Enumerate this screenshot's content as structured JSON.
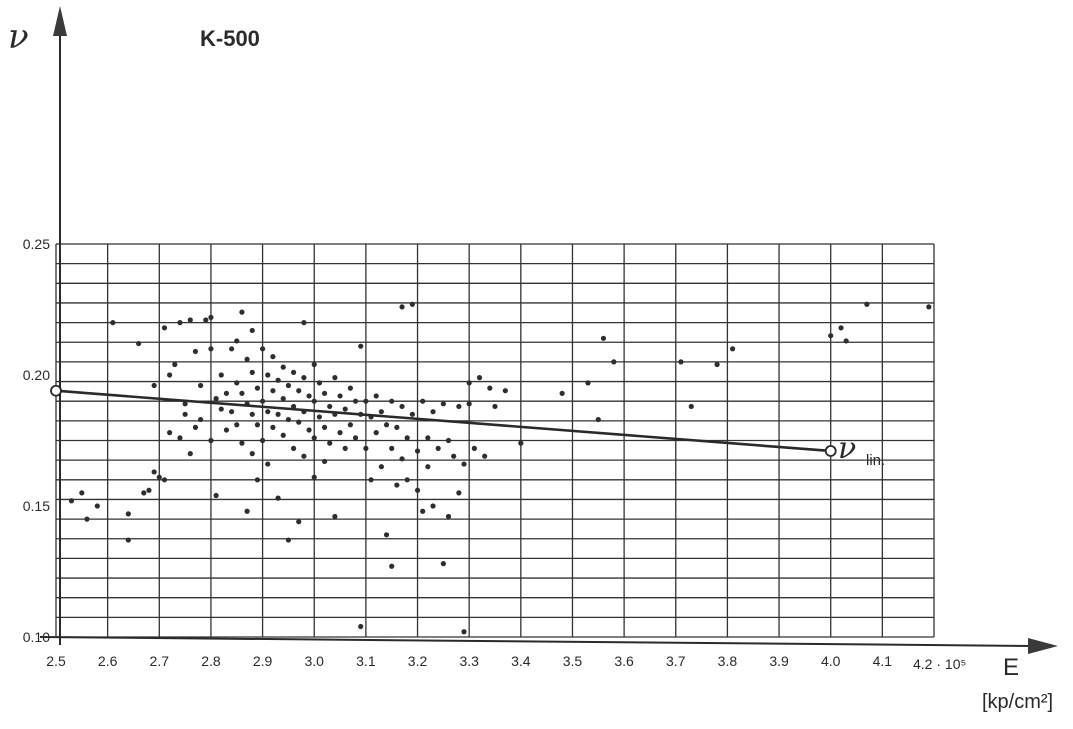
{
  "chart_data": {
    "type": "scatter",
    "title": "K-500",
    "ylabel": "ν",
    "xlabel": "E",
    "xunit": "[kp/cm²]",
    "x_multiplier_label": "4.2 · 10⁵",
    "xlim": [
      2.5,
      4.2
    ],
    "ylim": [
      0.1,
      0.25
    ],
    "x_ticks": [
      "2.5",
      "2.6",
      "2.7",
      "2.8",
      "2.9",
      "3.0",
      "3.1",
      "3.2",
      "3.3",
      "3.4",
      "3.5",
      "3.6",
      "3.7",
      "3.8",
      "3.9",
      "4.0",
      "4.1"
    ],
    "y_ticks": [
      "0.25",
      "0.20",
      "0.15",
      "0.10"
    ],
    "grid": true,
    "fit_line": {
      "label": "ν",
      "label_sub": "lin.",
      "points": [
        [
          2.5,
          0.194
        ],
        [
          4.0,
          0.171
        ]
      ]
    },
    "points": [
      [
        2.53,
        0.152
      ],
      [
        2.55,
        0.155
      ],
      [
        2.56,
        0.145
      ],
      [
        2.58,
        0.15
      ],
      [
        2.61,
        0.22
      ],
      [
        2.64,
        0.147
      ],
      [
        2.64,
        0.137
      ],
      [
        2.66,
        0.212
      ],
      [
        2.67,
        0.155
      ],
      [
        2.68,
        0.156
      ],
      [
        2.69,
        0.196
      ],
      [
        2.69,
        0.163
      ],
      [
        2.7,
        0.161
      ],
      [
        2.71,
        0.16
      ],
      [
        2.71,
        0.218
      ],
      [
        2.72,
        0.178
      ],
      [
        2.72,
        0.2
      ],
      [
        2.73,
        0.204
      ],
      [
        2.74,
        0.176
      ],
      [
        2.74,
        0.22
      ],
      [
        2.75,
        0.189
      ],
      [
        2.75,
        0.185
      ],
      [
        2.76,
        0.221
      ],
      [
        2.76,
        0.17
      ],
      [
        2.77,
        0.209
      ],
      [
        2.77,
        0.18
      ],
      [
        2.78,
        0.183
      ],
      [
        2.78,
        0.196
      ],
      [
        2.79,
        0.221
      ],
      [
        2.8,
        0.175
      ],
      [
        2.8,
        0.21
      ],
      [
        2.8,
        0.222
      ],
      [
        2.81,
        0.191
      ],
      [
        2.81,
        0.154
      ],
      [
        2.82,
        0.187
      ],
      [
        2.82,
        0.2
      ],
      [
        2.83,
        0.193
      ],
      [
        2.83,
        0.179
      ],
      [
        2.84,
        0.21
      ],
      [
        2.84,
        0.186
      ],
      [
        2.85,
        0.213
      ],
      [
        2.85,
        0.197
      ],
      [
        2.85,
        0.181
      ],
      [
        2.86,
        0.224
      ],
      [
        2.86,
        0.193
      ],
      [
        2.86,
        0.174
      ],
      [
        2.87,
        0.206
      ],
      [
        2.87,
        0.189
      ],
      [
        2.87,
        0.148
      ],
      [
        2.88,
        0.217
      ],
      [
        2.88,
        0.201
      ],
      [
        2.88,
        0.185
      ],
      [
        2.88,
        0.17
      ],
      [
        2.89,
        0.195
      ],
      [
        2.89,
        0.181
      ],
      [
        2.89,
        0.16
      ],
      [
        2.9,
        0.21
      ],
      [
        2.9,
        0.19
      ],
      [
        2.9,
        0.175
      ],
      [
        2.91,
        0.2
      ],
      [
        2.91,
        0.186
      ],
      [
        2.91,
        0.166
      ],
      [
        2.92,
        0.207
      ],
      [
        2.92,
        0.194
      ],
      [
        2.92,
        0.18
      ],
      [
        2.93,
        0.198
      ],
      [
        2.93,
        0.185
      ],
      [
        2.93,
        0.153
      ],
      [
        2.94,
        0.203
      ],
      [
        2.94,
        0.191
      ],
      [
        2.94,
        0.177
      ],
      [
        2.95,
        0.196
      ],
      [
        2.95,
        0.183
      ],
      [
        2.95,
        0.137
      ],
      [
        2.96,
        0.201
      ],
      [
        2.96,
        0.188
      ],
      [
        2.96,
        0.172
      ],
      [
        2.97,
        0.194
      ],
      [
        2.97,
        0.182
      ],
      [
        2.97,
        0.144
      ],
      [
        2.98,
        0.22
      ],
      [
        2.98,
        0.199
      ],
      [
        2.98,
        0.186
      ],
      [
        2.98,
        0.169
      ],
      [
        2.99,
        0.192
      ],
      [
        2.99,
        0.179
      ],
      [
        3.0,
        0.204
      ],
      [
        3.0,
        0.19
      ],
      [
        3.0,
        0.176
      ],
      [
        3.0,
        0.161
      ],
      [
        3.01,
        0.197
      ],
      [
        3.01,
        0.184
      ],
      [
        3.02,
        0.193
      ],
      [
        3.02,
        0.18
      ],
      [
        3.02,
        0.167
      ],
      [
        3.03,
        0.188
      ],
      [
        3.03,
        0.174
      ],
      [
        3.04,
        0.199
      ],
      [
        3.04,
        0.185
      ],
      [
        3.04,
        0.146
      ],
      [
        3.05,
        0.192
      ],
      [
        3.05,
        0.178
      ],
      [
        3.06,
        0.187
      ],
      [
        3.06,
        0.172
      ],
      [
        3.07,
        0.195
      ],
      [
        3.07,
        0.181
      ],
      [
        3.08,
        0.19
      ],
      [
        3.08,
        0.176
      ],
      [
        3.09,
        0.211
      ],
      [
        3.09,
        0.185
      ],
      [
        3.09,
        0.104
      ],
      [
        3.1,
        0.19
      ],
      [
        3.1,
        0.172
      ],
      [
        3.11,
        0.184
      ],
      [
        3.11,
        0.16
      ],
      [
        3.12,
        0.192
      ],
      [
        3.12,
        0.178
      ],
      [
        3.13,
        0.186
      ],
      [
        3.13,
        0.165
      ],
      [
        3.14,
        0.181
      ],
      [
        3.14,
        0.139
      ],
      [
        3.15,
        0.19
      ],
      [
        3.15,
        0.172
      ],
      [
        3.15,
        0.127
      ],
      [
        3.16,
        0.18
      ],
      [
        3.16,
        0.158
      ],
      [
        3.17,
        0.226
      ],
      [
        3.17,
        0.188
      ],
      [
        3.17,
        0.168
      ],
      [
        3.18,
        0.176
      ],
      [
        3.18,
        0.16
      ],
      [
        3.19,
        0.227
      ],
      [
        3.19,
        0.185
      ],
      [
        3.2,
        0.171
      ],
      [
        3.2,
        0.156
      ],
      [
        3.21,
        0.19
      ],
      [
        3.21,
        0.148
      ],
      [
        3.22,
        0.176
      ],
      [
        3.22,
        0.165
      ],
      [
        3.23,
        0.186
      ],
      [
        3.23,
        0.15
      ],
      [
        3.24,
        0.172
      ],
      [
        3.25,
        0.189
      ],
      [
        3.25,
        0.128
      ],
      [
        3.26,
        0.175
      ],
      [
        3.26,
        0.146
      ],
      [
        3.27,
        0.169
      ],
      [
        3.28,
        0.188
      ],
      [
        3.28,
        0.155
      ],
      [
        3.29,
        0.166
      ],
      [
        3.29,
        0.102
      ],
      [
        3.3,
        0.197
      ],
      [
        3.3,
        0.189
      ],
      [
        3.31,
        0.172
      ],
      [
        3.32,
        0.199
      ],
      [
        3.33,
        0.169
      ],
      [
        3.34,
        0.195
      ],
      [
        3.35,
        0.188
      ],
      [
        3.37,
        0.194
      ],
      [
        3.4,
        0.174
      ],
      [
        3.48,
        0.193
      ],
      [
        3.53,
        0.197
      ],
      [
        3.55,
        0.183
      ],
      [
        3.56,
        0.214
      ],
      [
        3.58,
        0.205
      ],
      [
        3.71,
        0.205
      ],
      [
        3.73,
        0.188
      ],
      [
        3.78,
        0.204
      ],
      [
        3.81,
        0.21
      ],
      [
        4.0,
        0.215
      ],
      [
        4.02,
        0.218
      ],
      [
        4.03,
        0.213
      ],
      [
        4.07,
        0.227
      ],
      [
        4.19,
        0.226
      ]
    ]
  }
}
